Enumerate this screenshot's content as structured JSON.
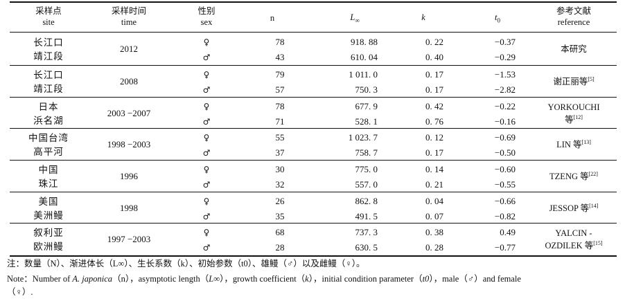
{
  "header": {
    "site_zh": "采样点",
    "site_en": "site",
    "time_zh": "采样时间",
    "time_en": "time",
    "sex_zh": "性别",
    "sex_en": "sex",
    "n": "n",
    "linf_base": "L",
    "linf_sub": "∞",
    "k": "k",
    "t0_base": "t",
    "t0_sub": "0",
    "ref_zh": "参考文献",
    "ref_en": "reference"
  },
  "groups": [
    {
      "site": [
        "长江口",
        "靖江段"
      ],
      "time": "2012",
      "rows": [
        {
          "sex": "♀",
          "n": "78",
          "linf": "918. 88",
          "k": "0. 22",
          "t0": "−0.37"
        },
        {
          "sex": "♂",
          "n": "43",
          "linf": "610. 04",
          "k": "0. 40",
          "t0": "−0.29"
        }
      ],
      "reference": {
        "text": "本研究",
        "sup": ""
      }
    },
    {
      "site": [
        "长江口",
        "靖江段"
      ],
      "time": "2008",
      "rows": [
        {
          "sex": "♀",
          "n": "79",
          "linf": "1 011. 0",
          "k": "0. 17",
          "t0": "−1.53"
        },
        {
          "sex": "♂",
          "n": "57",
          "linf": "750. 3",
          "k": "0. 17",
          "t0": "−2.82"
        }
      ],
      "reference": {
        "text": "谢正丽等",
        "sup": "[5]"
      }
    },
    {
      "site": [
        "日本",
        "浜名湖"
      ],
      "time": "2003 −2007",
      "rows": [
        {
          "sex": "♀",
          "n": "78",
          "linf": "677. 9",
          "k": "0. 42",
          "t0": "−0.22"
        },
        {
          "sex": "♂",
          "n": "71",
          "linf": "528. 1",
          "k": "0. 76",
          "t0": "−0.16"
        }
      ],
      "reference": {
        "text": "YORKOUCHI",
        "text2": "等",
        "sup": "[12]"
      }
    },
    {
      "site": [
        "中国台湾",
        "高平河"
      ],
      "time": "1998 −2003",
      "rows": [
        {
          "sex": "♀",
          "n": "55",
          "linf": "1 023. 7",
          "k": "0. 12",
          "t0": "−0.69"
        },
        {
          "sex": "♂",
          "n": "37",
          "linf": "758. 7",
          "k": "0. 17",
          "t0": "−0.50"
        }
      ],
      "reference": {
        "text": "LIN 等",
        "sup": "[13]"
      }
    },
    {
      "site": [
        "中国",
        "珠江"
      ],
      "time": "1996",
      "rows": [
        {
          "sex": "♀",
          "n": "30",
          "linf": "775. 0",
          "k": "0. 14",
          "t0": "−0.60"
        },
        {
          "sex": "♂",
          "n": "32",
          "linf": "557. 0",
          "k": "0. 21",
          "t0": "−0.55"
        }
      ],
      "reference": {
        "text": "TZENG 等",
        "sup": "[22]"
      }
    },
    {
      "site": [
        "美国",
        "美洲鳗"
      ],
      "time": "1998",
      "rows": [
        {
          "sex": "♀",
          "n": "26",
          "linf": "862. 8",
          "k": "0. 04",
          "t0": "−0.66"
        },
        {
          "sex": "♂",
          "n": "35",
          "linf": "491. 5",
          "k": "0. 07",
          "t0": "−0.82"
        }
      ],
      "reference": {
        "text": "JESSOP 等",
        "sup": "[14]"
      }
    },
    {
      "site": [
        "叙利亚",
        "欧洲鳗"
      ],
      "time": "1997 −2003",
      "rows": [
        {
          "sex": "♀",
          "n": "68",
          "linf": "737. 3",
          "k": "0. 38",
          "t0": "0.49"
        },
        {
          "sex": "♂",
          "n": "28",
          "linf": "630. 5",
          "k": "0. 28",
          "t0": "−0.77"
        }
      ],
      "reference": {
        "text": "YALCIN -",
        "text2": "OZDILEK 等",
        "sup": "[15]"
      }
    }
  ],
  "note_zh": "注：数量（N）、渐进体长（L∞）、生长系数（k）、初始参数（t0）、雄鳗（♂）以及雌鳗（♀）。",
  "note_en_1": {
    "a": "Note：Number of ",
    "species": "A. japonica",
    "b": "（n），asymptotic length（",
    "linf": "L∞",
    "c": "），growth coefficient（",
    "kv": "k",
    "d": "），initial condition parameter（",
    "t0": "t0",
    "e": "），male（♂）and female"
  },
  "note_en_2": "（♀）."
}
